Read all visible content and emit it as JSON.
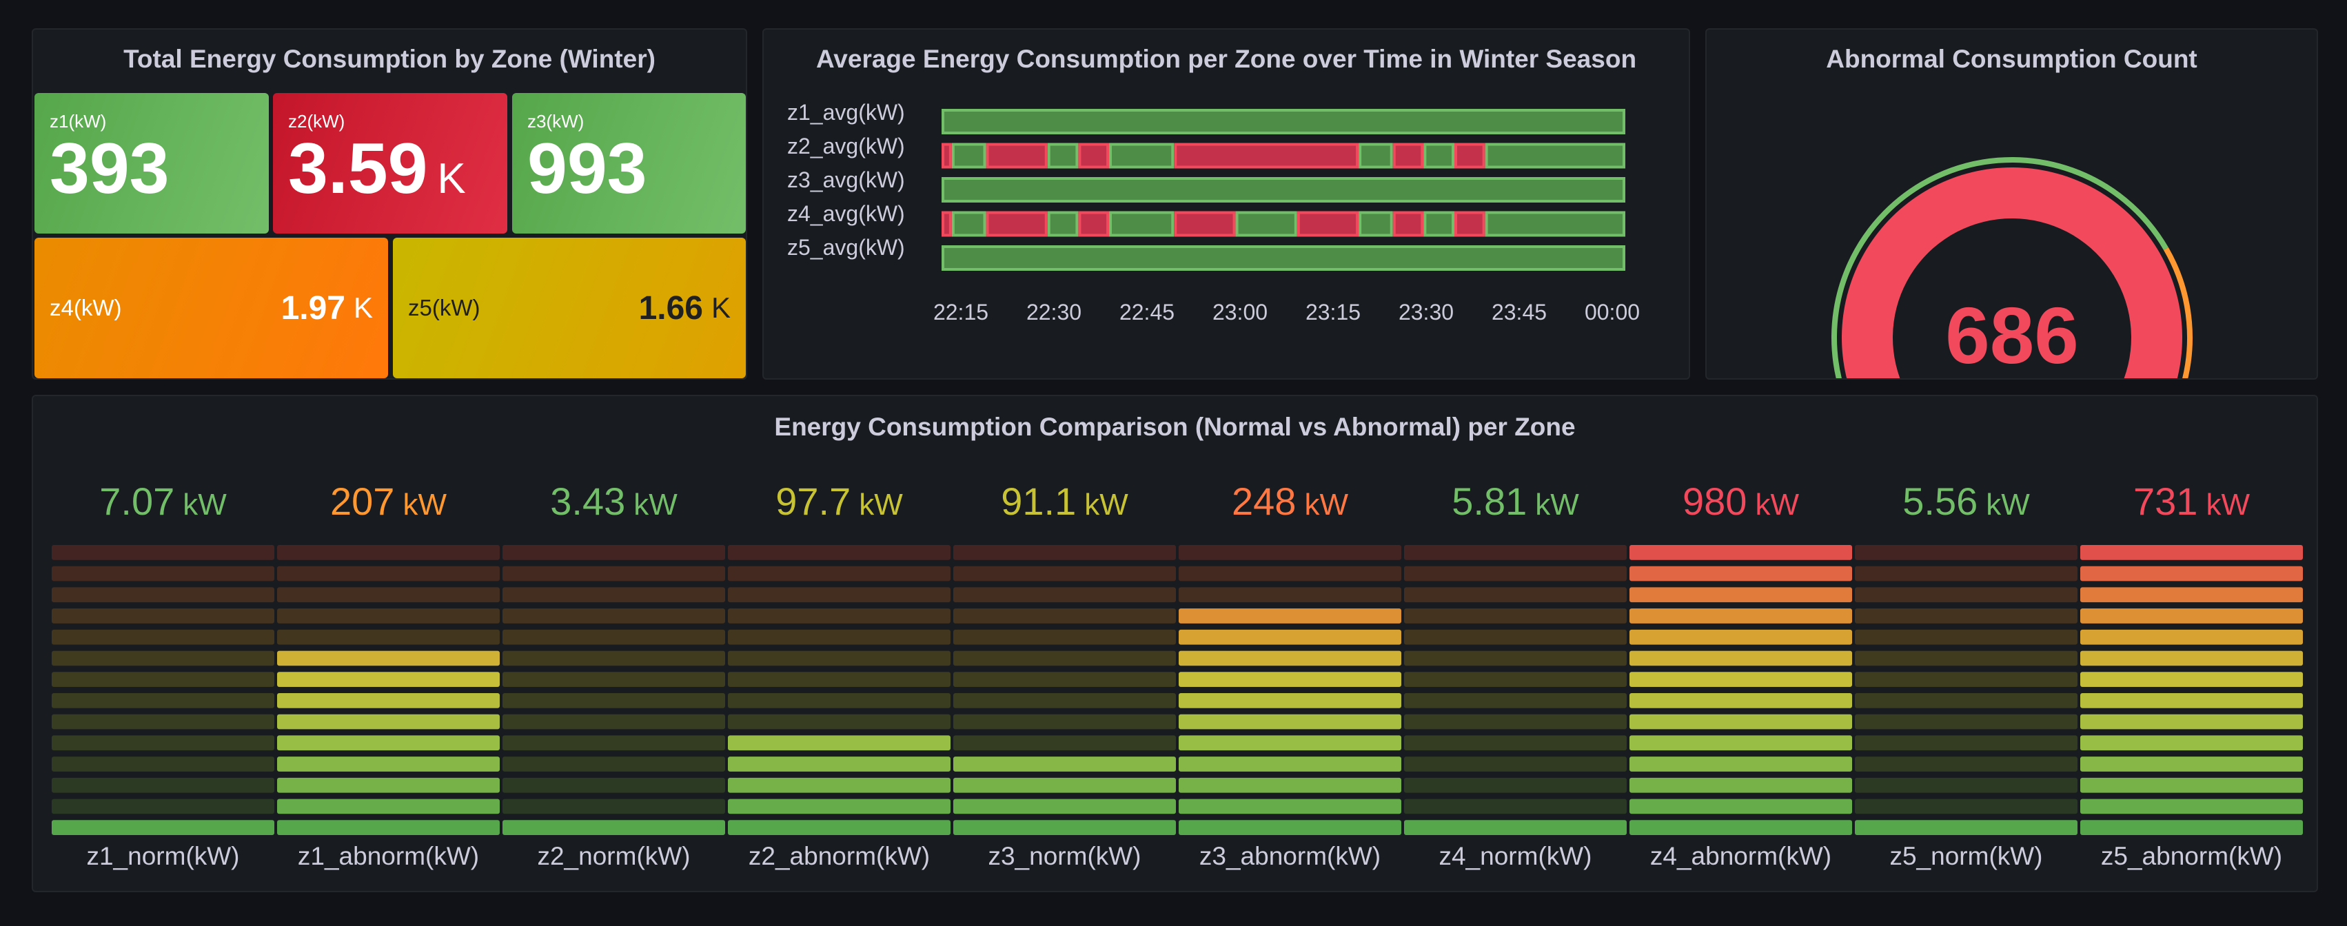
{
  "panels": {
    "stat": {
      "title": "Total Energy Consumption by Zone (Winter)",
      "tiles": [
        {
          "label": "z1(kW)",
          "value": "393",
          "unit": ""
        },
        {
          "label": "z2(kW)",
          "value": "3.59",
          "unit": "K"
        },
        {
          "label": "z3(kW)",
          "value": "993",
          "unit": ""
        },
        {
          "label": "z4(kW)",
          "value": "1.97",
          "unit": "K"
        },
        {
          "label": "z5(kW)",
          "value": "1.66",
          "unit": "K"
        }
      ]
    },
    "timeline": {
      "title": "Average Energy Consumption per Zone over Time in Winter Season",
      "rows": [
        "z1_avg(kW)",
        "z2_avg(kW)",
        "z3_avg(kW)",
        "z4_avg(kW)",
        "z5_avg(kW)"
      ],
      "ticks": [
        "22:15",
        "22:30",
        "22:45",
        "23:00",
        "23:15",
        "23:30",
        "23:45",
        "00:00"
      ],
      "state_colors": {
        "normal": "#4e8d47",
        "abnormal": "#c4314b",
        "border_normal": "#73bf69",
        "border_abnormal": "#f2495c"
      },
      "segments": {
        "z1_avg(kW)": [
          [
            "n",
            0,
            100
          ]
        ],
        "z2_avg(kW)": [
          [
            "a",
            0,
            1.5
          ],
          [
            "n",
            1.5,
            6.5
          ],
          [
            "a",
            6.5,
            15.5
          ],
          [
            "n",
            15.5,
            20
          ],
          [
            "a",
            20,
            24.5
          ],
          [
            "n",
            24.5,
            34
          ],
          [
            "a",
            34,
            61
          ],
          [
            "n",
            61,
            66
          ],
          [
            "a",
            66,
            70.5
          ],
          [
            "n",
            70.5,
            75
          ],
          [
            "a",
            75,
            79.5
          ],
          [
            "n",
            79.5,
            100
          ]
        ],
        "z3_avg(kW)": [
          [
            "n",
            0,
            100
          ]
        ],
        "z4_avg(kW)": [
          [
            "a",
            0,
            1.5
          ],
          [
            "n",
            1.5,
            6.5
          ],
          [
            "a",
            6.5,
            15.5
          ],
          [
            "n",
            15.5,
            20
          ],
          [
            "a",
            20,
            24.5
          ],
          [
            "n",
            24.5,
            34
          ],
          [
            "a",
            34,
            43
          ],
          [
            "n",
            43,
            52
          ],
          [
            "a",
            52,
            61
          ],
          [
            "n",
            61,
            66
          ],
          [
            "a",
            66,
            70.5
          ],
          [
            "n",
            70.5,
            75
          ],
          [
            "a",
            75,
            79.5
          ],
          [
            "n",
            79.5,
            100
          ]
        ],
        "z5_avg(kW)": [
          [
            "n",
            0,
            100
          ]
        ]
      }
    },
    "gauge": {
      "title": "Abnormal Consumption Count",
      "value": 686,
      "value_text": "686",
      "value_color": "#f2495c",
      "threshold_colors": [
        "#73bf69",
        "#ff9830",
        "#f2495c"
      ]
    },
    "bargauge": {
      "title": "Energy Consumption Comparison (Normal vs Abnormal) per Zone",
      "unit": "kW"
    }
  },
  "chart_data": {
    "type": "bar",
    "title": "Energy Consumption Comparison (Normal vs Abnormal) per Zone",
    "categories": [
      "z1_norm(kW)",
      "z1_abnorm(kW)",
      "z2_norm(kW)",
      "z2_abnorm(kW)",
      "z3_norm(kW)",
      "z3_abnorm(kW)",
      "z4_norm(kW)",
      "z4_abnorm(kW)",
      "z5_norm(kW)",
      "z5_abnorm(kW)"
    ],
    "values": [
      7.07,
      207,
      3.43,
      97.7,
      91.1,
      248,
      5.81,
      980,
      5.56,
      731
    ],
    "value_labels": [
      "7.07",
      "207",
      "3.43",
      "97.7",
      "91.1",
      "248",
      "5.81",
      "980",
      "5.56",
      "731"
    ],
    "value_colors": [
      "#73bf69",
      "#ff9830",
      "#73bf69",
      "#c8c235",
      "#c8c235",
      "#ff7843",
      "#73bf69",
      "#f2495c",
      "#73bf69",
      "#f2495c"
    ],
    "lit_cells": [
      1,
      9,
      1,
      5,
      4,
      11,
      1,
      14,
      1,
      14
    ],
    "total_cells": 14,
    "unit": "kW",
    "ylim": [
      0,
      1000
    ]
  }
}
